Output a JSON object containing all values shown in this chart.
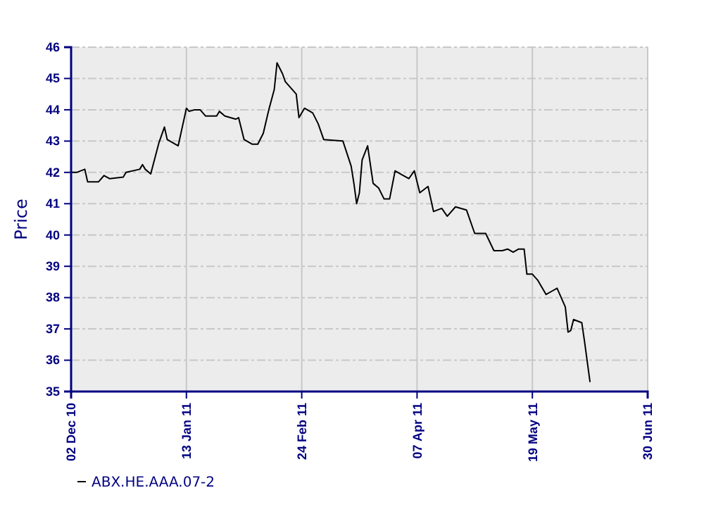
{
  "chart_data": {
    "type": "line",
    "ylabel": "Price",
    "xlim": [
      "2010-12-02",
      "2011-06-30"
    ],
    "xticks": [
      {
        "value": "2010-12-02",
        "label": "02 Dec 10"
      },
      {
        "value": "2011-01-13",
        "label": "13 Jan 11"
      },
      {
        "value": "2011-02-24",
        "label": "24 Feb 11"
      },
      {
        "value": "2011-04-07",
        "label": "07 Apr 11"
      },
      {
        "value": "2011-05-19",
        "label": "19 May 11"
      },
      {
        "value": "2011-06-30",
        "label": "30 Jun 11"
      }
    ],
    "ylim": [
      35,
      46
    ],
    "yticks": [
      35,
      36,
      37,
      38,
      39,
      40,
      41,
      42,
      43,
      44,
      45,
      46
    ],
    "grid": true,
    "legend": "bottom left",
    "marker": "none",
    "line_style": "solid",
    "series": [
      {
        "name": "ABX.HE.AAA.07-2",
        "color": "#000000",
        "x": [
          "2010-12-02",
          "2010-12-04",
          "2010-12-07",
          "2010-12-08",
          "2010-12-12",
          "2010-12-14",
          "2010-12-16",
          "2010-12-21",
          "2010-12-22",
          "2010-12-27",
          "2010-12-28",
          "2010-12-29",
          "2010-12-31",
          "2011-01-03",
          "2011-01-05",
          "2011-01-06",
          "2011-01-10",
          "2011-01-13",
          "2011-01-14",
          "2011-01-16",
          "2011-01-18",
          "2011-01-20",
          "2011-01-24",
          "2011-01-25",
          "2011-01-27",
          "2011-01-31",
          "2011-02-01",
          "2011-02-03",
          "2011-02-06",
          "2011-02-08",
          "2011-02-10",
          "2011-02-12",
          "2011-02-14",
          "2011-02-15",
          "2011-02-17",
          "2011-02-18",
          "2011-02-22",
          "2011-02-23",
          "2011-02-25",
          "2011-02-28",
          "2011-03-02",
          "2011-03-04",
          "2011-03-11",
          "2011-03-14",
          "2011-03-15",
          "2011-03-16",
          "2011-03-17",
          "2011-03-18",
          "2011-03-20",
          "2011-03-22",
          "2011-03-24",
          "2011-03-26",
          "2011-03-28",
          "2011-03-30",
          "2011-04-01",
          "2011-04-04",
          "2011-04-06",
          "2011-04-08",
          "2011-04-11",
          "2011-04-13",
          "2011-04-16",
          "2011-04-18",
          "2011-04-21",
          "2011-04-25",
          "2011-04-28",
          "2011-05-02",
          "2011-05-05",
          "2011-05-08",
          "2011-05-10",
          "2011-05-12",
          "2011-05-14",
          "2011-05-16",
          "2011-05-17",
          "2011-05-19",
          "2011-05-21",
          "2011-05-24",
          "2011-05-26",
          "2011-05-28",
          "2011-05-31",
          "2011-06-01",
          "2011-06-02",
          "2011-06-03",
          "2011-06-06",
          "2011-06-07",
          "2011-06-09"
        ],
        "values": [
          42.0,
          42.0,
          42.1,
          41.7,
          41.7,
          41.9,
          41.8,
          41.85,
          42.0,
          42.1,
          42.25,
          42.1,
          41.95,
          42.95,
          43.45,
          43.05,
          42.85,
          44.05,
          43.95,
          44.0,
          44.0,
          43.8,
          43.8,
          43.95,
          43.8,
          43.7,
          43.75,
          43.05,
          42.9,
          42.9,
          43.25,
          44.0,
          44.65,
          45.5,
          45.15,
          44.9,
          44.5,
          43.75,
          44.05,
          43.9,
          43.55,
          43.05,
          43.0,
          42.2,
          41.65,
          41.0,
          41.35,
          42.4,
          42.85,
          41.65,
          41.5,
          41.15,
          41.15,
          42.05,
          41.95,
          41.8,
          42.05,
          41.35,
          41.55,
          40.75,
          40.85,
          40.6,
          40.9,
          40.8,
          40.05,
          40.05,
          39.5,
          39.5,
          39.55,
          39.45,
          39.55,
          39.55,
          38.75,
          38.75,
          38.55,
          38.1,
          38.2,
          38.3,
          37.7,
          36.9,
          36.95,
          37.3,
          37.2,
          36.6,
          35.3
        ]
      }
    ]
  }
}
